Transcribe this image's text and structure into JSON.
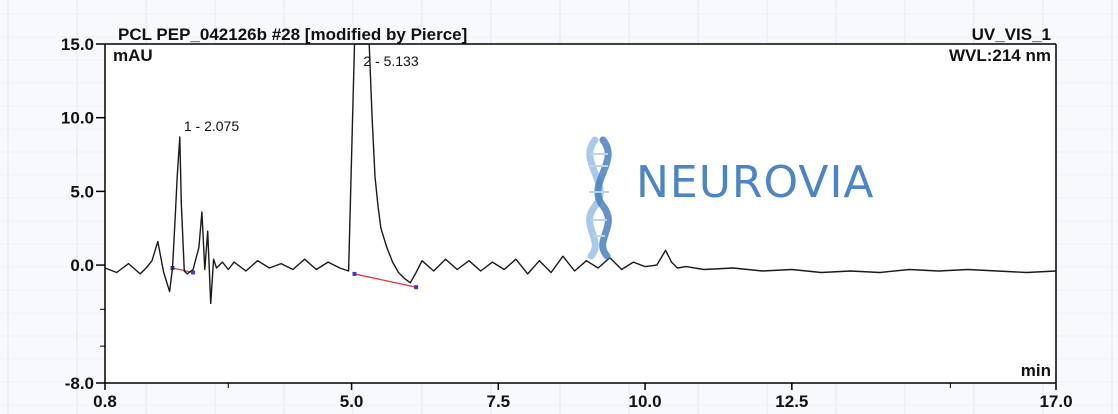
{
  "chart_data": {
    "type": "line",
    "title": "PCL PEP_042126b #28 [modified by Pierce]",
    "channel": "UV_VIS_1",
    "wavelength": "WVL:214 nm",
    "ylabel": "mAU",
    "xlabel": "min",
    "xlim": [
      0.8,
      17.0
    ],
    "ylim": [
      -8.0,
      15.0
    ],
    "x_ticks": [
      "0.8",
      "5.0",
      "7.5",
      "10.0",
      "12.5",
      "17.0"
    ],
    "x_tick_values": [
      0.8,
      5.0,
      7.5,
      10.0,
      12.5,
      17.0
    ],
    "y_ticks": [
      "15.0",
      "10.0",
      "5.0",
      "0.0",
      "-8.0"
    ],
    "y_tick_values": [
      15.0,
      10.0,
      5.0,
      0.0,
      -8.0
    ],
    "grid": false,
    "peaks": [
      {
        "label": "1 - 2.075",
        "x": 2.075,
        "y": 8.7
      },
      {
        "label": "2 - 5.133",
        "x": 5.133,
        "y": 15.0
      }
    ],
    "series": [
      {
        "x": [
          0.8,
          1.0,
          1.2,
          1.4,
          1.5,
          1.6,
          1.7,
          1.8,
          1.9,
          1.95,
          2.0,
          2.03,
          2.075,
          2.1,
          2.15,
          2.2,
          2.3,
          2.4,
          2.45,
          2.5,
          2.55,
          2.6,
          2.65,
          2.7,
          2.8,
          2.9,
          3.0,
          3.2,
          3.4,
          3.6,
          3.8,
          4.0,
          4.2,
          4.4,
          4.6,
          4.8,
          4.95,
          5.05,
          5.1,
          5.133,
          5.2,
          5.3,
          5.35,
          5.4,
          5.45,
          5.5,
          5.6,
          5.7,
          5.8,
          5.9,
          6.0,
          6.1,
          6.2,
          6.4,
          6.6,
          6.8,
          7.0,
          7.2,
          7.4,
          7.6,
          7.8,
          8.0,
          8.2,
          8.4,
          8.6,
          8.8,
          9.0,
          9.2,
          9.4,
          9.6,
          9.8,
          10.0,
          10.2,
          10.35,
          10.45,
          10.55,
          10.7,
          11.0,
          11.5,
          12.0,
          12.5,
          13.0,
          13.5,
          14.0,
          14.5,
          15.0,
          15.5,
          16.0,
          16.5,
          17.0
        ],
        "y": [
          -0.2,
          -0.5,
          0.1,
          -0.6,
          -0.2,
          0.3,
          1.6,
          -0.5,
          -1.8,
          -0.2,
          3.5,
          6.0,
          8.7,
          4.2,
          -0.4,
          -0.6,
          -0.3,
          1.2,
          3.6,
          -0.3,
          2.3,
          -2.6,
          0.4,
          -0.2,
          0.2,
          -0.3,
          0.2,
          -0.4,
          0.3,
          -0.2,
          0.1,
          -0.3,
          0.4,
          -0.3,
          0.2,
          -0.2,
          -0.4,
          15.0,
          15.0,
          15.0,
          15.0,
          15.0,
          10.0,
          6.0,
          4.0,
          2.5,
          1.2,
          0.2,
          -0.5,
          -0.9,
          -1.2,
          -0.5,
          0.3,
          -0.4,
          0.4,
          -0.3,
          0.3,
          -0.4,
          0.2,
          -0.3,
          0.4,
          -0.6,
          0.3,
          -0.5,
          0.6,
          -0.4,
          0.3,
          -0.2,
          0.5,
          -0.3,
          0.2,
          -0.1,
          0.0,
          1.0,
          0.2,
          -0.2,
          -0.1,
          -0.3,
          -0.2,
          -0.4,
          -0.3,
          -0.5,
          -0.4,
          -0.5,
          -0.3,
          -0.4,
          -0.3,
          -0.4,
          -0.5,
          -0.4
        ]
      }
    ],
    "baselines": [
      {
        "x": [
          1.95,
          2.3
        ],
        "y": [
          -0.2,
          -0.5
        ]
      },
      {
        "x": [
          5.05,
          6.1
        ],
        "y": [
          -0.6,
          -1.5
        ]
      }
    ]
  },
  "watermark": {
    "brand": "NEUROVIA"
  },
  "colors": {
    "trace": "#1a1a1a",
    "baseline": "#e23b3b",
    "marker": "#3b3bd6",
    "logo_light": "#a9c9ea",
    "logo_dark": "#4a7fc0",
    "brand_text": "#4d84c4"
  }
}
